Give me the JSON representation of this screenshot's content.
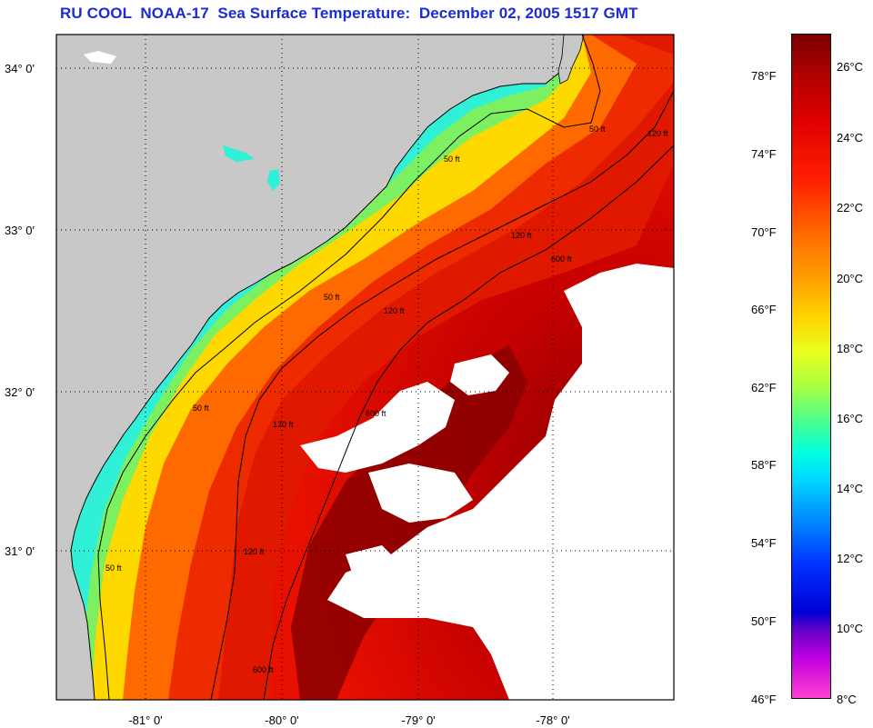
{
  "title": "RU COOL  NOAA-17  Sea Surface Temperature:  December 02, 2005 1517 GMT",
  "latitude_labels": [
    "34° 0'",
    "33° 0'",
    "32° 0'",
    "31° 0'"
  ],
  "longitude_labels": [
    "-81° 0'",
    "-80° 0'",
    "-79° 0'",
    "-78° 0'"
  ],
  "contour_labels": [
    "50 ft",
    "50 ft",
    "50 ft",
    "50 ft",
    "50 ft",
    "120 ft",
    "120 ft",
    "120 ft",
    "120 ft",
    "120 ft",
    "600 ft",
    "600 ft",
    "600 ft"
  ],
  "fahrenheit_labels": [
    "78°F",
    "74°F",
    "70°F",
    "66°F",
    "62°F",
    "58°F",
    "54°F",
    "50°F",
    "46°F"
  ],
  "celsius_labels": [
    "26°C",
    "24°C",
    "22°C",
    "20°C",
    "18°C",
    "16°C",
    "14°C",
    "12°C",
    "10°C",
    "8°C"
  ],
  "colors": {
    "title": "#1c2bd6",
    "land": "#c8c8c8",
    "cloud": "#ffffff",
    "warm_max": "#7a0000",
    "cool_min": "#ff40d0"
  }
}
